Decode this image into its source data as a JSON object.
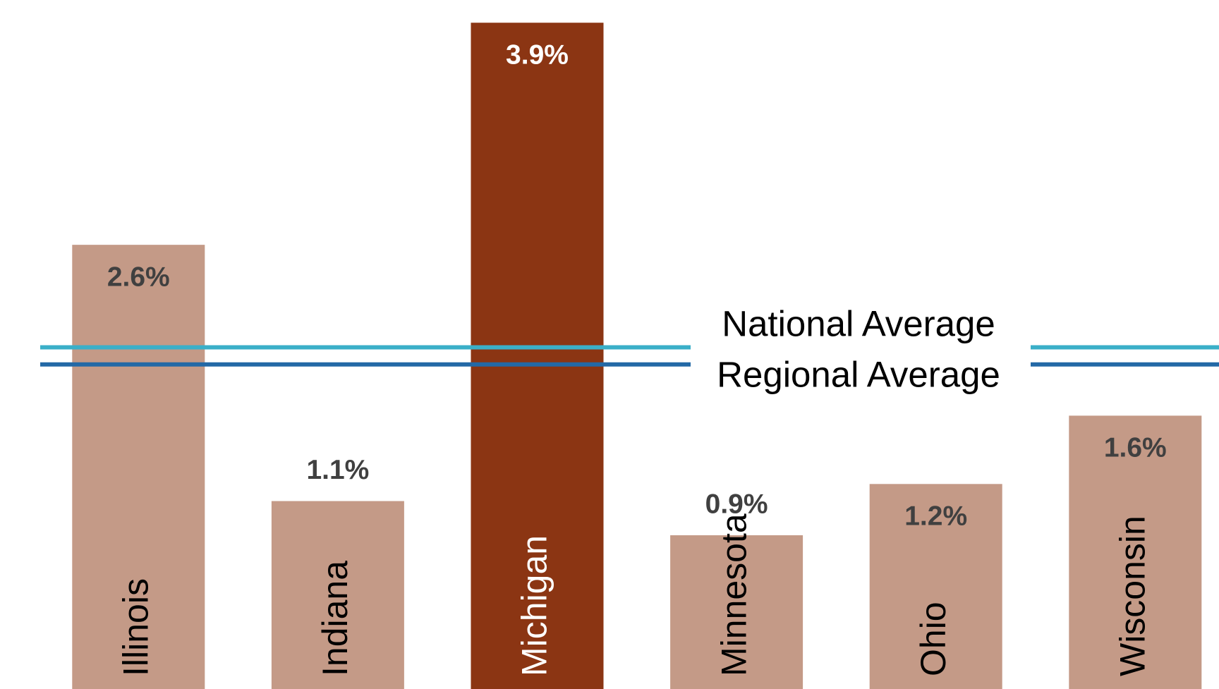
{
  "chart_data": {
    "type": "bar",
    "categories": [
      "Illinois",
      "Indiana",
      "Michigan",
      "Minnesota",
      "Ohio",
      "Wisconsin"
    ],
    "values": [
      2.6,
      1.1,
      3.9,
      0.9,
      1.2,
      1.6
    ],
    "value_labels": [
      "2.6%",
      "1.1%",
      "3.9%",
      "0.9%",
      "1.2%",
      "1.6%"
    ],
    "colors": [
      "#c49a87",
      "#c49a87",
      "#8b3513",
      "#c49a87",
      "#c49a87",
      "#c49a87"
    ],
    "ylim": [
      0,
      4
    ],
    "reference_lines": [
      {
        "name": "National Average",
        "value": 2.0,
        "color": "#3aafc8"
      },
      {
        "name": "Regional Average",
        "value": 1.9,
        "color": "#2369a6"
      }
    ]
  }
}
